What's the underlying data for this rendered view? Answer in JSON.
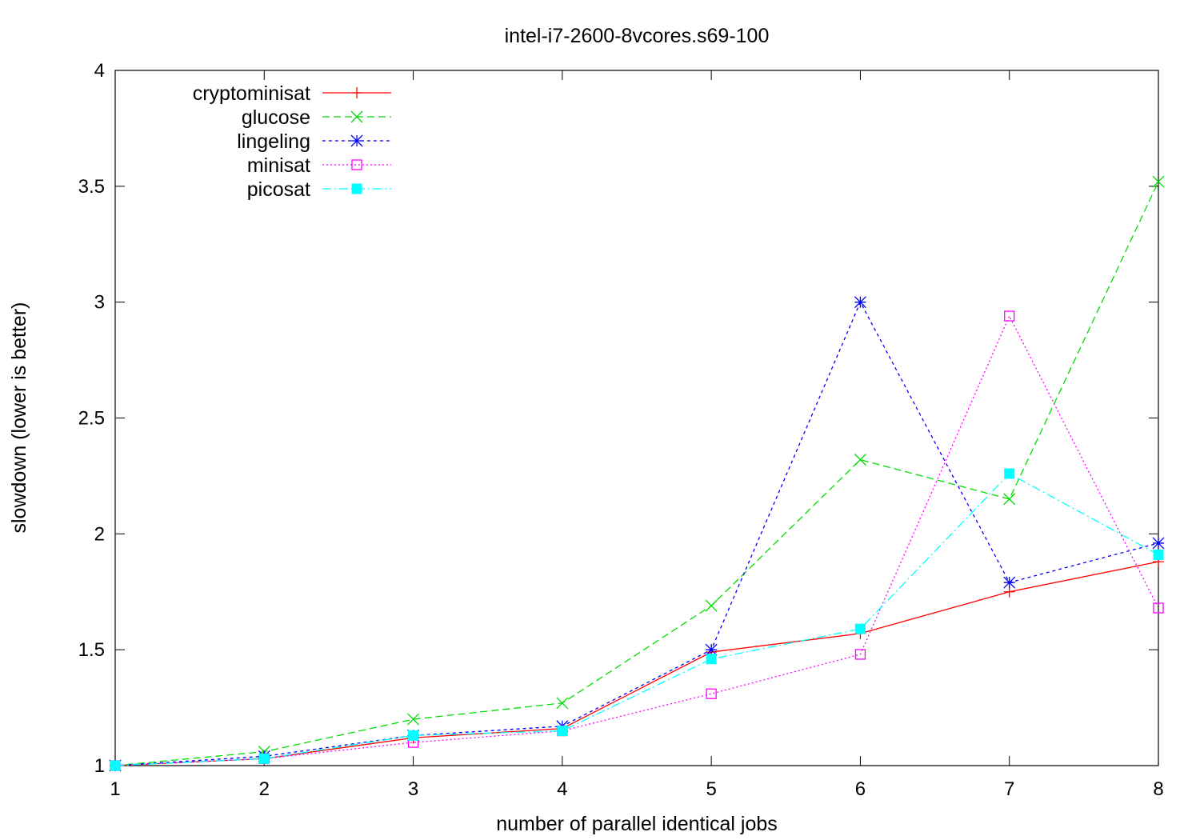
{
  "chart_data": {
    "type": "line",
    "title": "intel-i7-2600-8vcores.s69-100",
    "xlabel": "number of parallel identical jobs",
    "ylabel": "slowdown (lower is better)",
    "xlim": [
      1,
      8
    ],
    "ylim": [
      1,
      4
    ],
    "x": [
      1,
      2,
      3,
      4,
      5,
      6,
      7,
      8
    ],
    "xticks": [
      "1",
      "2",
      "3",
      "4",
      "5",
      "6",
      "7",
      "8"
    ],
    "yticks": [
      1,
      1.5,
      2,
      2.5,
      3,
      3.5,
      4
    ],
    "ytick_labels": [
      "1",
      "1.5",
      "2",
      "2.5",
      "3",
      "3.5",
      "4"
    ],
    "grid": false,
    "legend_position": "top-left",
    "series": [
      {
        "name": "cryptominisat",
        "values": [
          1.0,
          1.03,
          1.12,
          1.16,
          1.49,
          1.57,
          1.75,
          1.88
        ],
        "color": "#ff0000",
        "marker": "plus",
        "dash": ""
      },
      {
        "name": "glucose",
        "values": [
          1.0,
          1.06,
          1.2,
          1.27,
          1.69,
          2.32,
          2.15,
          3.52
        ],
        "color": "#00dd00",
        "marker": "cross",
        "dash": "9 5"
      },
      {
        "name": "lingeling",
        "values": [
          1.0,
          1.04,
          1.13,
          1.17,
          1.5,
          3.0,
          1.79,
          1.96
        ],
        "color": "#0000ff",
        "marker": "star",
        "dash": "4 4"
      },
      {
        "name": "minisat",
        "values": [
          1.0,
          1.03,
          1.1,
          1.15,
          1.31,
          1.48,
          2.94,
          1.68
        ],
        "color": "#ff00ff",
        "marker": "square-open",
        "dash": "2 3"
      },
      {
        "name": "picosat",
        "values": [
          1.0,
          1.03,
          1.13,
          1.15,
          1.46,
          1.59,
          2.26,
          1.91
        ],
        "color": "#00ffff",
        "marker": "square-filled",
        "dash": "11 4 2 4"
      }
    ]
  }
}
